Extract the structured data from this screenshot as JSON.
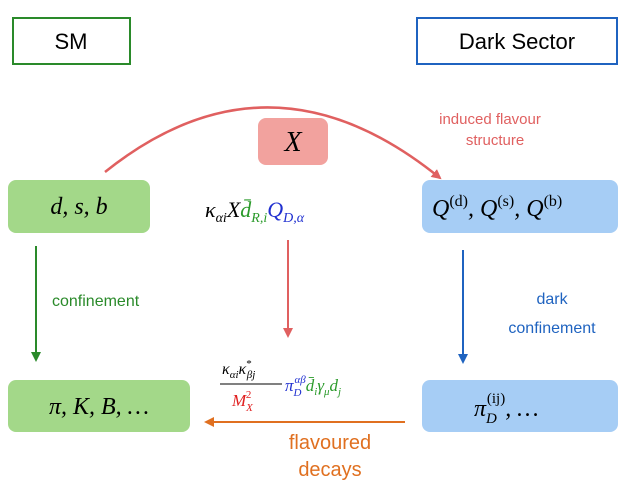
{
  "header": {
    "left": "SM",
    "right": "Dark Sector"
  },
  "mediator": "X",
  "nodes": {
    "sm_quarks": "d, s, b",
    "dark_quarks": [
      "Q",
      "(d)",
      ", Q",
      "(s)",
      ", Q",
      "(b)"
    ],
    "sm_mesons": "π, K, B, …",
    "dark_mesons": [
      "π",
      "D",
      "(ij)",
      ", …"
    ]
  },
  "interaction": [
    "κ",
    "αi",
    "X",
    "d̄",
    "R,i",
    "Q",
    "D,α"
  ],
  "effective_operator": {
    "numerator": [
      "κ",
      "αi",
      "κ",
      "*",
      "βj"
    ],
    "denominator": [
      "M",
      "X",
      "2"
    ],
    "operator": [
      "π",
      "D",
      "αβ",
      "d̄",
      "i",
      "γ",
      "μ",
      "d",
      "j"
    ]
  },
  "labels": {
    "induced": [
      "induced flavour",
      "structure"
    ],
    "confinement": "confinement",
    "dark_confinement": [
      "dark",
      "confinement"
    ],
    "decays": [
      "flavoured",
      "decays"
    ]
  }
}
